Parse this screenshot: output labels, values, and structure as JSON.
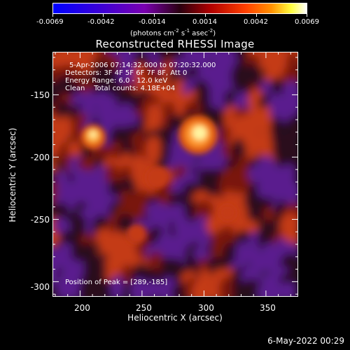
{
  "colorbar": {
    "ticks": [
      "-0.0069",
      "-0.0042",
      "-0.0014",
      "0.0014",
      "0.0042",
      "0.0069"
    ],
    "units": "(photons cm",
    "units_exp1": "-2",
    "units_mid1": " s",
    "units_exp2": "-1",
    "units_mid2": " asec",
    "units_exp3": "-2",
    "units_end": ")"
  },
  "title": "Reconstructed RHESSI Image",
  "info": {
    "time": "5-Apr-2006 07:14:32.000 to 07:20:32.000",
    "detectors": "Detectors: 3F 4F 5F 6F 7F 8F, Att 0",
    "energy": "Energy Range: 6.0 - 12.0 keV",
    "clean": "Clean    Total counts: 4.18E+04",
    "peak": "Position of Peak = [289,-185]"
  },
  "axes": {
    "xlabel": "Heliocentric X (arcsec)",
    "ylabel": "Heliocentric Y (arcsec)",
    "xticks": [
      "200",
      "250",
      "300",
      "350"
    ],
    "yticks": [
      "-150",
      "-200",
      "-250",
      "-300"
    ]
  },
  "timestamp": "6-May-2022 00:29",
  "colors": {
    "negative": "#5a1f8e",
    "zero": "#1a0a18",
    "positive": "#c43a12",
    "peak": "#fff4a0"
  }
}
